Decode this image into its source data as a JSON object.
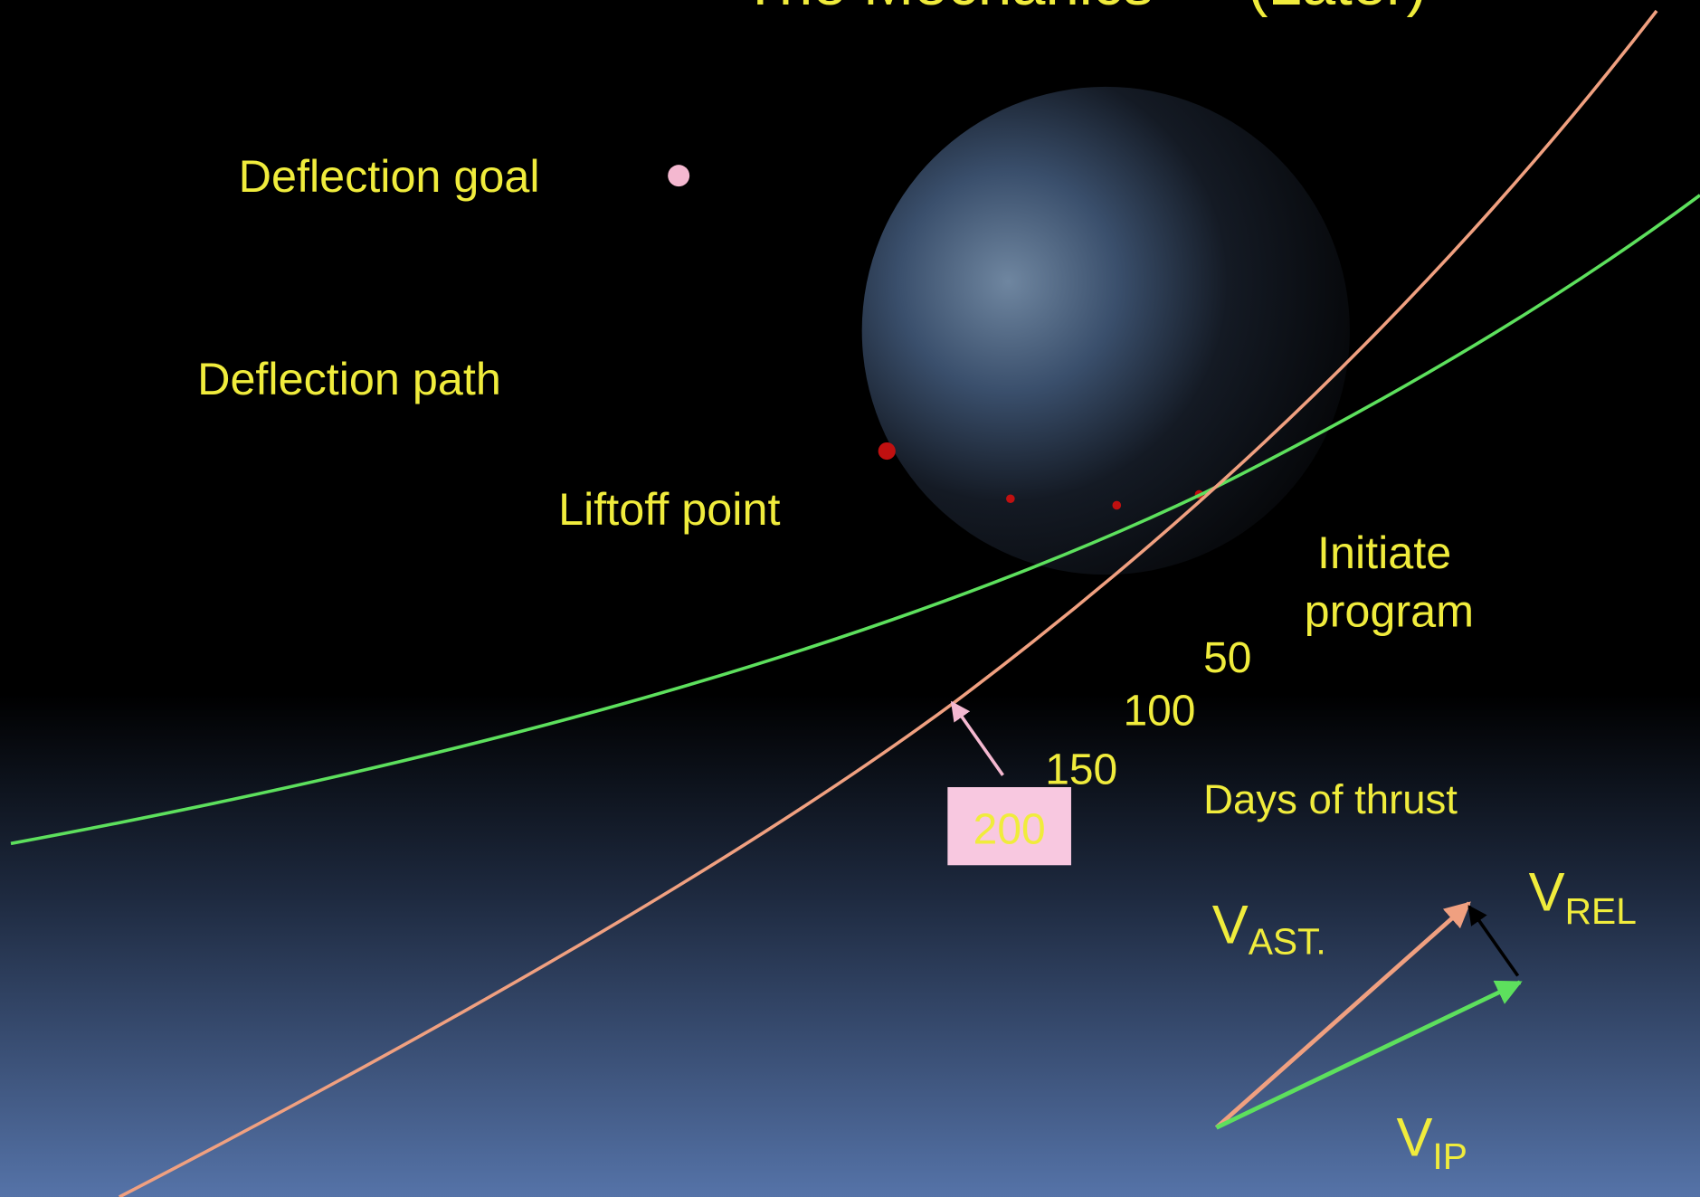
{
  "title": "The Mechanics — (Later)",
  "labels": {
    "deflection_goal": "Deflection goal",
    "deflection_path": "Deflection path",
    "liftoff_point": "Liftoff point",
    "initiate_program": [
      "Initiate",
      "program"
    ],
    "days_of_thrust": "Days of thrust"
  },
  "days": [
    "50",
    "100",
    "150",
    "200"
  ],
  "vectors": {
    "v_ast": {
      "main": "V",
      "sub": "AST."
    },
    "v_rel": {
      "main": "V",
      "sub": "REL"
    },
    "v_ip": {
      "main": "V",
      "sub": "IP"
    }
  }
}
